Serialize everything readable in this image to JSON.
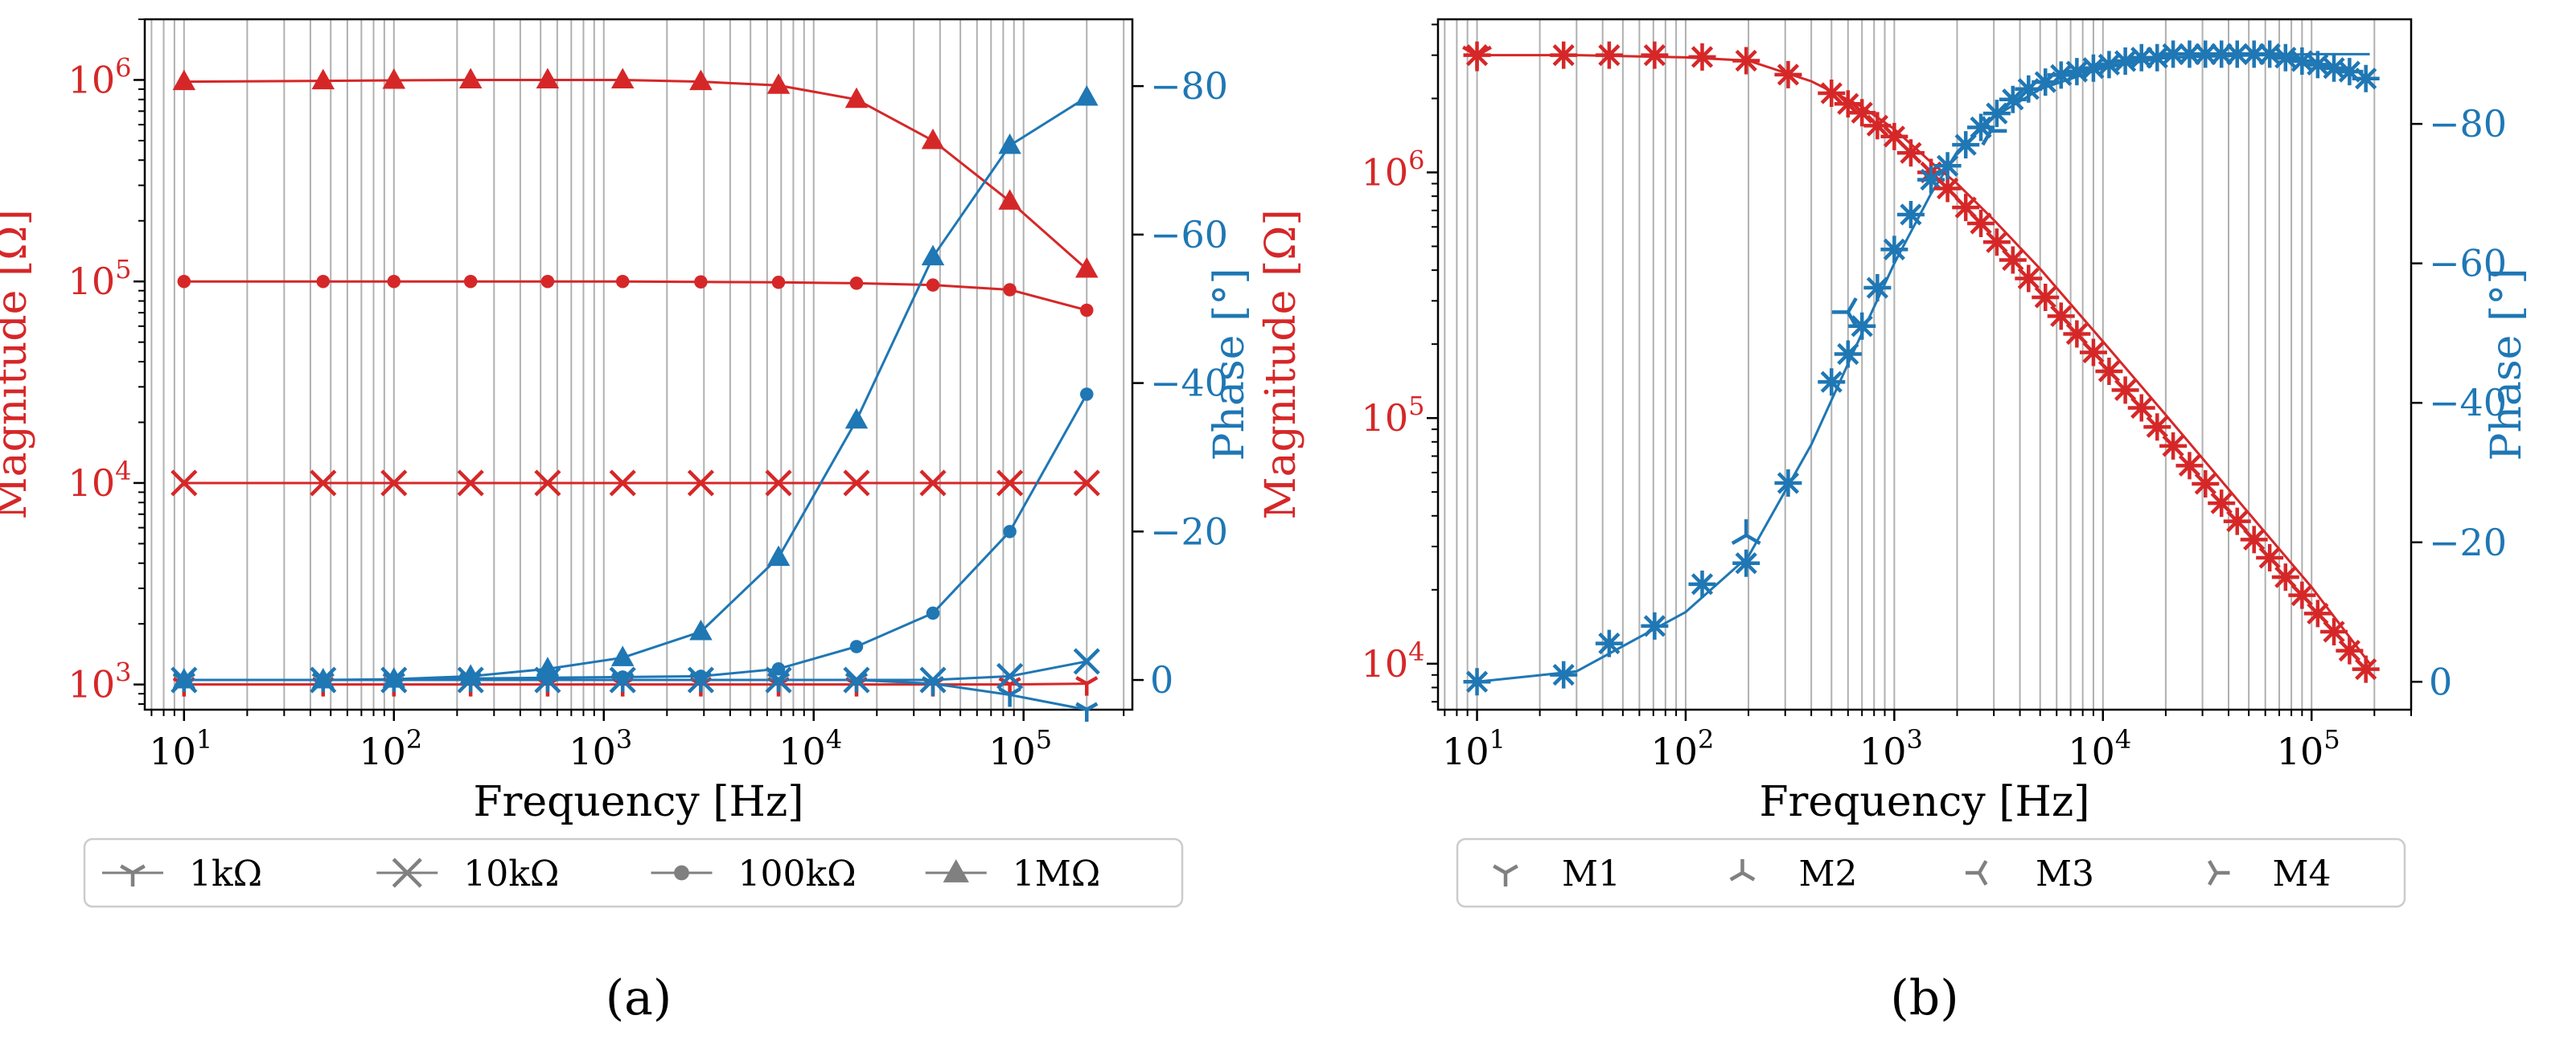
{
  "colors": {
    "magnitude": "#d62728",
    "phase": "#1f77b4",
    "grid": "#b0b0b0",
    "legend_marker": "#808080"
  },
  "chart_data": [
    {
      "id": "a",
      "type": "line",
      "caption": "(a)",
      "xlabel": "Frequency [Hz]",
      "ylabel_left": "Magnitude [Ω]",
      "ylabel_right": "Phase [°]",
      "xscale": "log",
      "xlim": [
        6.5,
        330000
      ],
      "xticks": [
        {
          "value": 10,
          "base": "10",
          "exp": "1"
        },
        {
          "value": 100,
          "base": "10",
          "exp": "2"
        },
        {
          "value": 1000,
          "base": "10",
          "exp": "3"
        },
        {
          "value": 10000,
          "base": "10",
          "exp": "4"
        },
        {
          "value": 100000,
          "base": "10",
          "exp": "5"
        }
      ],
      "ylim_left": [
        750,
        2000000
      ],
      "yticks_left": [
        {
          "value": 1000,
          "base": "10",
          "exp": "3"
        },
        {
          "value": 10000,
          "base": "10",
          "exp": "4"
        },
        {
          "value": 100000,
          "base": "10",
          "exp": "5"
        },
        {
          "value": 1000000,
          "base": "10",
          "exp": "6"
        }
      ],
      "ylim_right": [
        4,
        -89
      ],
      "yticks_right": [
        {
          "value": 0,
          "label": "0"
        },
        {
          "value": -20,
          "label": "−20"
        },
        {
          "value": -40,
          "label": "−40"
        },
        {
          "value": -60,
          "label": "−60"
        },
        {
          "value": -80,
          "label": "−80"
        }
      ],
      "x": [
        10,
        46,
        100,
        232,
        540,
        1230,
        2900,
        6800,
        16000,
        37000,
        86000,
        200000
      ],
      "legend": [
        {
          "marker": "tri_down",
          "label": "1kΩ"
        },
        {
          "marker": "x",
          "label": "10kΩ"
        },
        {
          "marker": "dot",
          "label": "100kΩ"
        },
        {
          "marker": "triangle",
          "label": "1MΩ"
        }
      ],
      "magnitude_series": [
        {
          "name": "1kΩ",
          "marker": "tri_down",
          "values": [
            1000,
            1000,
            1000,
            1000,
            1000,
            1000,
            1000,
            1000,
            1000,
            1000,
            1000,
            1010
          ]
        },
        {
          "name": "10kΩ",
          "marker": "x",
          "values": [
            10000,
            10000,
            10000,
            10000,
            10000,
            10000,
            10000,
            10000,
            10000,
            10000,
            10000,
            10000
          ]
        },
        {
          "name": "100kΩ",
          "marker": "dot",
          "values": [
            100000,
            100000,
            100000,
            100000,
            100000,
            100000,
            99500,
            99000,
            98000,
            96000,
            91000,
            72000
          ]
        },
        {
          "name": "1MΩ",
          "marker": "triangle",
          "values": [
            980000,
            990000,
            995000,
            1000000,
            1000000,
            1000000,
            980000,
            940000,
            800000,
            500000,
            250000,
            115000
          ]
        }
      ],
      "phase_series": [
        {
          "name": "1kΩ",
          "marker": "tri_down",
          "values": [
            0,
            0,
            0,
            0,
            0,
            0,
            0,
            0,
            0,
            0.5,
            2,
            4
          ]
        },
        {
          "name": "10kΩ",
          "marker": "x",
          "values": [
            0,
            0,
            0,
            0,
            0,
            0,
            0,
            0,
            0,
            0,
            -0.5,
            -2.5
          ]
        },
        {
          "name": "100kΩ",
          "marker": "dot",
          "values": [
            0,
            0,
            0,
            -0.2,
            -0.3,
            -0.4,
            -0.5,
            -1.5,
            -4.5,
            -9,
            -20,
            -38.5
          ]
        },
        {
          "name": "1MΩ",
          "marker": "triangle",
          "values": [
            0,
            0,
            -0.1,
            -0.5,
            -1.5,
            -3,
            -6.5,
            -16.5,
            -35,
            -57,
            -72,
            -78.5
          ]
        }
      ]
    },
    {
      "id": "b",
      "type": "line",
      "caption": "(b)",
      "xlabel": "Frequency [Hz]",
      "ylabel_left": "Magnitude [Ω]",
      "ylabel_right": "Phase [°]",
      "xscale": "log",
      "xlim": [
        6.5,
        300000
      ],
      "xticks": [
        {
          "value": 10,
          "base": "10",
          "exp": "1"
        },
        {
          "value": 100,
          "base": "10",
          "exp": "2"
        },
        {
          "value": 1000,
          "base": "10",
          "exp": "3"
        },
        {
          "value": 10000,
          "base": "10",
          "exp": "4"
        },
        {
          "value": 100000,
          "base": "10",
          "exp": "5"
        }
      ],
      "ylim_left": [
        6500,
        4200000
      ],
      "yticks_left": [
        {
          "value": 10000,
          "base": "10",
          "exp": "4"
        },
        {
          "value": 100000,
          "base": "10",
          "exp": "5"
        },
        {
          "value": 1000000,
          "base": "10",
          "exp": "6"
        }
      ],
      "ylim_right": [
        4,
        -95
      ],
      "yticks_right": [
        {
          "value": 0,
          "label": "0"
        },
        {
          "value": -20,
          "label": "−20"
        },
        {
          "value": -40,
          "label": "−40"
        },
        {
          "value": -60,
          "label": "−60"
        },
        {
          "value": -80,
          "label": "−80"
        }
      ],
      "legend": [
        {
          "marker": "tri_down",
          "label": "M1"
        },
        {
          "marker": "tri_up",
          "label": "M2"
        },
        {
          "marker": "tri_left",
          "label": "M3"
        },
        {
          "marker": "tri_right",
          "label": "M4"
        }
      ],
      "fit_line": {
        "x": [
          10,
          30,
          100,
          200,
          400,
          700,
          1000,
          1500,
          2000,
          3000,
          5000,
          10000,
          20000,
          50000,
          100000,
          190000
        ],
        "magnitude": [
          3000000,
          3000000,
          2940000,
          2850000,
          2350000,
          1850000,
          1500000,
          1100000,
          900000,
          640000,
          405000,
          205000,
          103000,
          41000,
          20500,
          10000
        ],
        "phase": [
          0,
          -1.5,
          -10,
          -18,
          -34,
          -50,
          -60,
          -70,
          -76,
          -81,
          -85,
          -88,
          -89.5,
          -89.8,
          -90,
          -90
        ]
      },
      "x": [
        10,
        26,
        43,
        71,
        120,
        195,
        310,
        500,
        600,
        700,
        830,
        1000,
        1200,
        1500,
        1800,
        2200,
        2600,
        3100,
        3700,
        4400,
        5300,
        6300,
        7500,
        9000,
        10700,
        12800,
        15300,
        18200,
        21700,
        26000,
        31000,
        37000,
        44000,
        53000,
        63000,
        75000,
        90000,
        107000,
        128000,
        152000,
        182000
      ],
      "magnitude_values": [
        3000000,
        3000000,
        3000000,
        3000000,
        2950000,
        2850000,
        2500000,
        2100000,
        1900000,
        1750000,
        1550000,
        1400000,
        1200000,
        1000000,
        860000,
        720000,
        620000,
        520000,
        440000,
        370000,
        310000,
        260000,
        220000,
        185000,
        155000,
        130000,
        110000,
        92000,
        77000,
        64000,
        54000,
        45000,
        38000,
        32000,
        27000,
        22500,
        19000,
        16000,
        13500,
        11300,
        9500
      ],
      "phase_values": [
        0,
        -1,
        -5.5,
        -8,
        -14,
        -17,
        -28.5,
        -43,
        -47,
        -51,
        -56.5,
        -62,
        -67,
        -72,
        -74,
        -77,
        -79.5,
        -81.5,
        -83.5,
        -85,
        -86,
        -87,
        -87.5,
        -88,
        -88.5,
        -89,
        -89.5,
        -89.5,
        -90,
        -90,
        -90,
        -90,
        -90,
        -90,
        -90,
        -89.5,
        -89,
        -88.5,
        -88,
        -87.5,
        -86.5
      ],
      "outliers": [
        {
          "series": "magnitude",
          "x": 10,
          "value": 3000000,
          "marker": "tri_down"
        },
        {
          "series": "phase",
          "x": 195,
          "value": -21,
          "marker": "tri_up"
        },
        {
          "series": "phase",
          "x": 600,
          "value": -53,
          "marker": "tri_left"
        },
        {
          "series": "phase",
          "x": 2900,
          "value": -79,
          "marker": "tri_right"
        }
      ]
    }
  ]
}
